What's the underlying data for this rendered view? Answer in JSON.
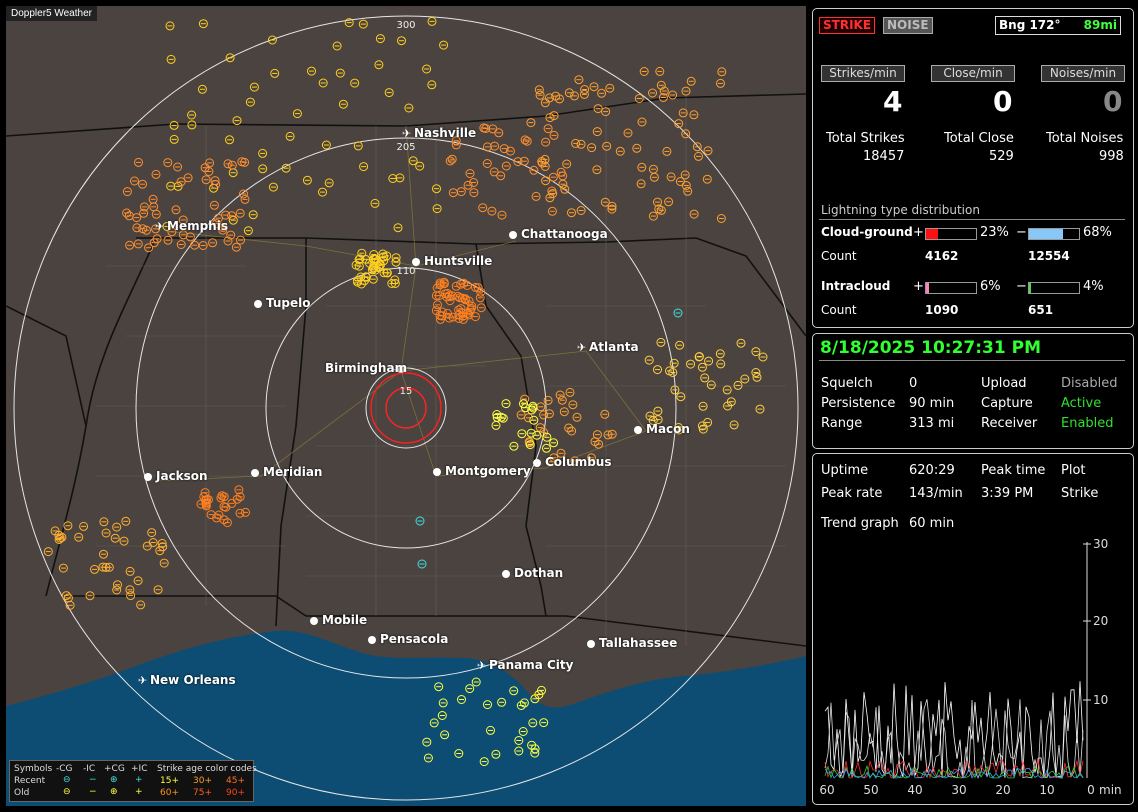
{
  "map": {
    "title": "Doppler5 Weather",
    "range_labels": [
      "300",
      "205",
      "110",
      "15"
    ],
    "cities": [
      {
        "name": "Nashville",
        "airport": true
      },
      {
        "name": "Memphis",
        "airport": true
      },
      {
        "name": "Chattanooga",
        "airport": false
      },
      {
        "name": "Huntsville",
        "airport": false
      },
      {
        "name": "Tupelo",
        "airport": false
      },
      {
        "name": "Atlanta",
        "airport": true
      },
      {
        "name": "Birmingham",
        "airport": false
      },
      {
        "name": "Macon",
        "airport": false
      },
      {
        "name": "Jackson",
        "airport": false
      },
      {
        "name": "Meridian",
        "airport": false
      },
      {
        "name": "Montgomery",
        "airport": false
      },
      {
        "name": "Columbus",
        "airport": false
      },
      {
        "name": "Dothan",
        "airport": false
      },
      {
        "name": "Mobile",
        "airport": false
      },
      {
        "name": "Pensacola",
        "airport": false
      },
      {
        "name": "Tallahassee",
        "airport": false
      },
      {
        "name": "Panama City",
        "airport": true
      },
      {
        "name": "New Orleans",
        "airport": true
      }
    ],
    "legend": {
      "symbols_label": "Symbols",
      "col_headers": [
        "-CG",
        "-IC",
        "+CG",
        "+IC"
      ],
      "recent_label": "Recent",
      "old_label": "Old",
      "age_title": "Strike age color codes",
      "recent_ages": [
        "15+",
        "30+",
        "45+"
      ],
      "old_ages": [
        "60+",
        "75+",
        "90+"
      ],
      "age_colors": [
        "#ffff40",
        "#ffa020",
        "#ff6010"
      ]
    },
    "colors": {
      "land": "#4a4340",
      "water": "#0d4d73",
      "ring_outer": "#e6e6e6",
      "ring_inner": "#ff2020"
    }
  },
  "top": {
    "strike_btn": "STRIKE",
    "noise_btn": "NOISE",
    "bearing": "Bng 172°",
    "distance": "89mi",
    "rate_headers": [
      "Strikes/min",
      "Close/min",
      "Noises/min"
    ],
    "rates": [
      "4",
      "0",
      "0"
    ],
    "total_labels": [
      "Total Strikes",
      "Total Close",
      "Total Noises"
    ],
    "totals": [
      "18457",
      "529",
      "998"
    ],
    "dist_title": "Lightning type distribution",
    "cg_label": "Cloud-ground",
    "cg_pos_sign": "+",
    "cg_pos_pct": "23%",
    "cg_neg_sign": "−",
    "cg_neg_pct": "68%",
    "count_label": "Count",
    "cg_pos_count": "4162",
    "cg_neg_count": "12554",
    "ic_label": "Intracloud",
    "ic_pos_sign": "+",
    "ic_pos_pct": "6%",
    "ic_neg_sign": "−",
    "ic_neg_pct": "4%",
    "ic_pos_count": "1090",
    "ic_neg_count": "651",
    "bar_fill": {
      "cg_pos": 0.23,
      "cg_neg": 0.68,
      "ic_pos": 0.06,
      "ic_neg": 0.04
    },
    "bar_colors": {
      "cg_pos": "#ff1010",
      "cg_neg": "#88c8f8",
      "ic_pos": "#ff80c0",
      "ic_neg": "#40e040"
    }
  },
  "status": {
    "datetime": "8/18/2025 10:27:31 PM",
    "rows": [
      {
        "k1": "Squelch",
        "v1": "0",
        "k2": "Upload",
        "v2": "Disabled"
      },
      {
        "k1": "Persistence",
        "v1": "90 min",
        "k2": "Capture",
        "v2": "Active"
      },
      {
        "k1": "Range",
        "v1": "313 mi",
        "k2": "Receiver",
        "v2": "Enabled"
      }
    ]
  },
  "stats": {
    "uptime_label": "Uptime",
    "uptime": "620:29",
    "peak_time_label": "Peak time",
    "plot_label": "Plot",
    "peak_rate_label": "Peak rate",
    "peak_rate": "143/min",
    "peak_time": "3:39 PM",
    "plot_value": "Strike",
    "trend_label": "Trend graph",
    "trend_value": "60 min",
    "y_ticks": [
      "30",
      "20",
      "10"
    ],
    "x_ticks": [
      "60",
      "50",
      "40",
      "30",
      "20",
      "10",
      "0"
    ],
    "x_unit": "min"
  }
}
